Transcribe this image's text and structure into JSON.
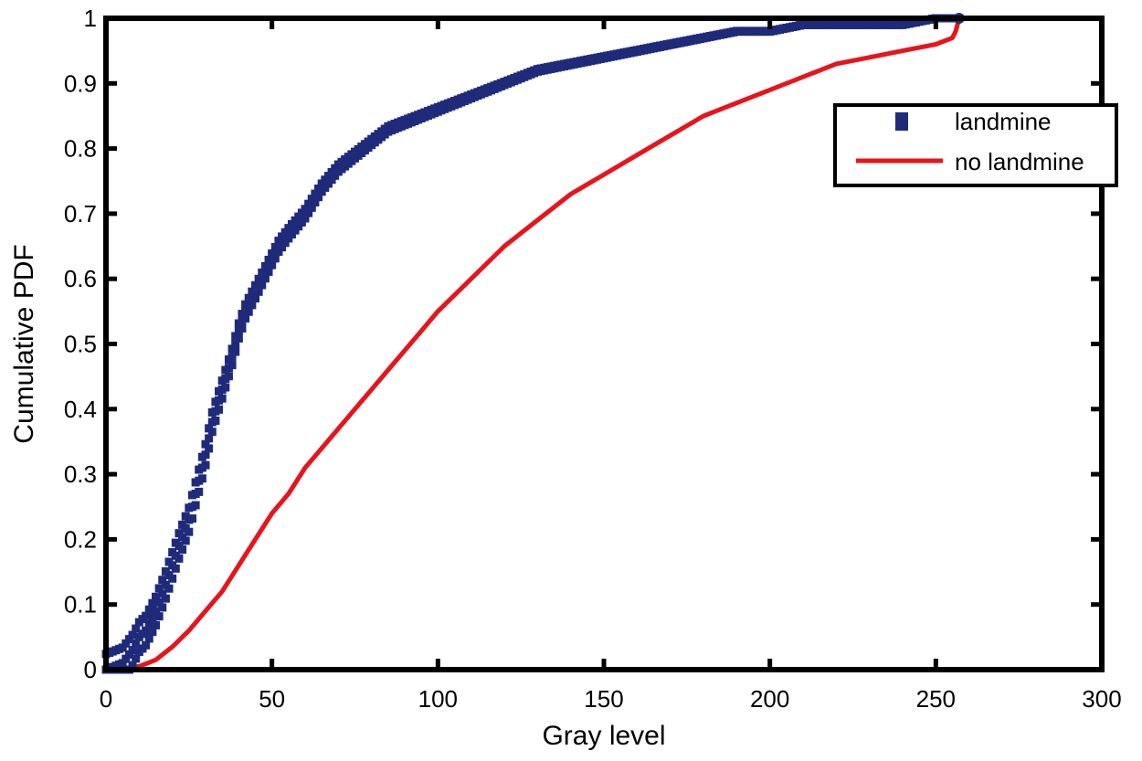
{
  "chart_data": {
    "type": "scatter",
    "title": "",
    "xlabel": "Gray level",
    "ylabel": "Cumulative PDF",
    "xlim": [
      0,
      300
    ],
    "ylim": [
      0,
      1
    ],
    "xticks": [
      0,
      50,
      100,
      150,
      200,
      250,
      300
    ],
    "yticks": [
      0,
      0.1,
      0.2,
      0.3,
      0.4,
      0.5,
      0.6,
      0.7,
      0.8,
      0.9,
      1
    ],
    "xtick_labels": [
      "0",
      "50",
      "100",
      "150",
      "200",
      "250",
      "300"
    ],
    "ytick_labels": [
      "0",
      "0.1",
      "0.2",
      "0.3",
      "0.4",
      "0.5",
      "0.6",
      "0.7",
      "0.8",
      "0.9",
      "1"
    ],
    "grid": false,
    "legend": {
      "position": "top-right"
    },
    "series": [
      {
        "name": "landmine",
        "style": "markers",
        "color": "#1f2a7a",
        "points": [
          [
            0,
            0
          ],
          [
            5,
            0.01
          ],
          [
            8,
            0.03
          ],
          [
            10,
            0.05
          ],
          [
            12,
            0.06
          ],
          [
            15,
            0.09
          ],
          [
            18,
            0.13
          ],
          [
            20,
            0.16
          ],
          [
            22,
            0.19
          ],
          [
            25,
            0.23
          ],
          [
            28,
            0.29
          ],
          [
            30,
            0.33
          ],
          [
            32,
            0.38
          ],
          [
            35,
            0.43
          ],
          [
            38,
            0.48
          ],
          [
            40,
            0.52
          ],
          [
            42,
            0.55
          ],
          [
            45,
            0.58
          ],
          [
            48,
            0.61
          ],
          [
            50,
            0.63
          ],
          [
            52,
            0.65
          ],
          [
            55,
            0.67
          ],
          [
            60,
            0.7
          ],
          [
            65,
            0.74
          ],
          [
            70,
            0.77
          ],
          [
            75,
            0.79
          ],
          [
            80,
            0.81
          ],
          [
            85,
            0.83
          ],
          [
            90,
            0.84
          ],
          [
            95,
            0.85
          ],
          [
            100,
            0.86
          ],
          [
            110,
            0.88
          ],
          [
            120,
            0.9
          ],
          [
            130,
            0.92
          ],
          [
            140,
            0.93
          ],
          [
            150,
            0.94
          ],
          [
            160,
            0.95
          ],
          [
            170,
            0.96
          ],
          [
            180,
            0.97
          ],
          [
            190,
            0.98
          ],
          [
            200,
            0.98
          ],
          [
            210,
            0.99
          ],
          [
            220,
            0.99
          ],
          [
            230,
            0.99
          ],
          [
            240,
            0.99
          ],
          [
            250,
            1.0
          ],
          [
            257,
            1.0
          ]
        ]
      },
      {
        "name": "no landmine",
        "style": "line",
        "color": "#e8141b",
        "points": [
          [
            0,
            0
          ],
          [
            5,
            0.002
          ],
          [
            10,
            0.005
          ],
          [
            15,
            0.015
          ],
          [
            20,
            0.035
          ],
          [
            25,
            0.06
          ],
          [
            30,
            0.09
          ],
          [
            35,
            0.12
          ],
          [
            40,
            0.16
          ],
          [
            45,
            0.2
          ],
          [
            50,
            0.24
          ],
          [
            55,
            0.27
          ],
          [
            60,
            0.31
          ],
          [
            65,
            0.34
          ],
          [
            70,
            0.37
          ],
          [
            75,
            0.4
          ],
          [
            80,
            0.43
          ],
          [
            85,
            0.46
          ],
          [
            90,
            0.49
          ],
          [
            95,
            0.52
          ],
          [
            100,
            0.55
          ],
          [
            110,
            0.6
          ],
          [
            120,
            0.65
          ],
          [
            130,
            0.69
          ],
          [
            140,
            0.73
          ],
          [
            150,
            0.76
          ],
          [
            160,
            0.79
          ],
          [
            170,
            0.82
          ],
          [
            180,
            0.85
          ],
          [
            190,
            0.87
          ],
          [
            200,
            0.89
          ],
          [
            210,
            0.91
          ],
          [
            220,
            0.93
          ],
          [
            230,
            0.94
          ],
          [
            240,
            0.95
          ],
          [
            250,
            0.96
          ],
          [
            255,
            0.97
          ],
          [
            256,
            0.98
          ],
          [
            257,
            1.0
          ]
        ]
      }
    ]
  }
}
